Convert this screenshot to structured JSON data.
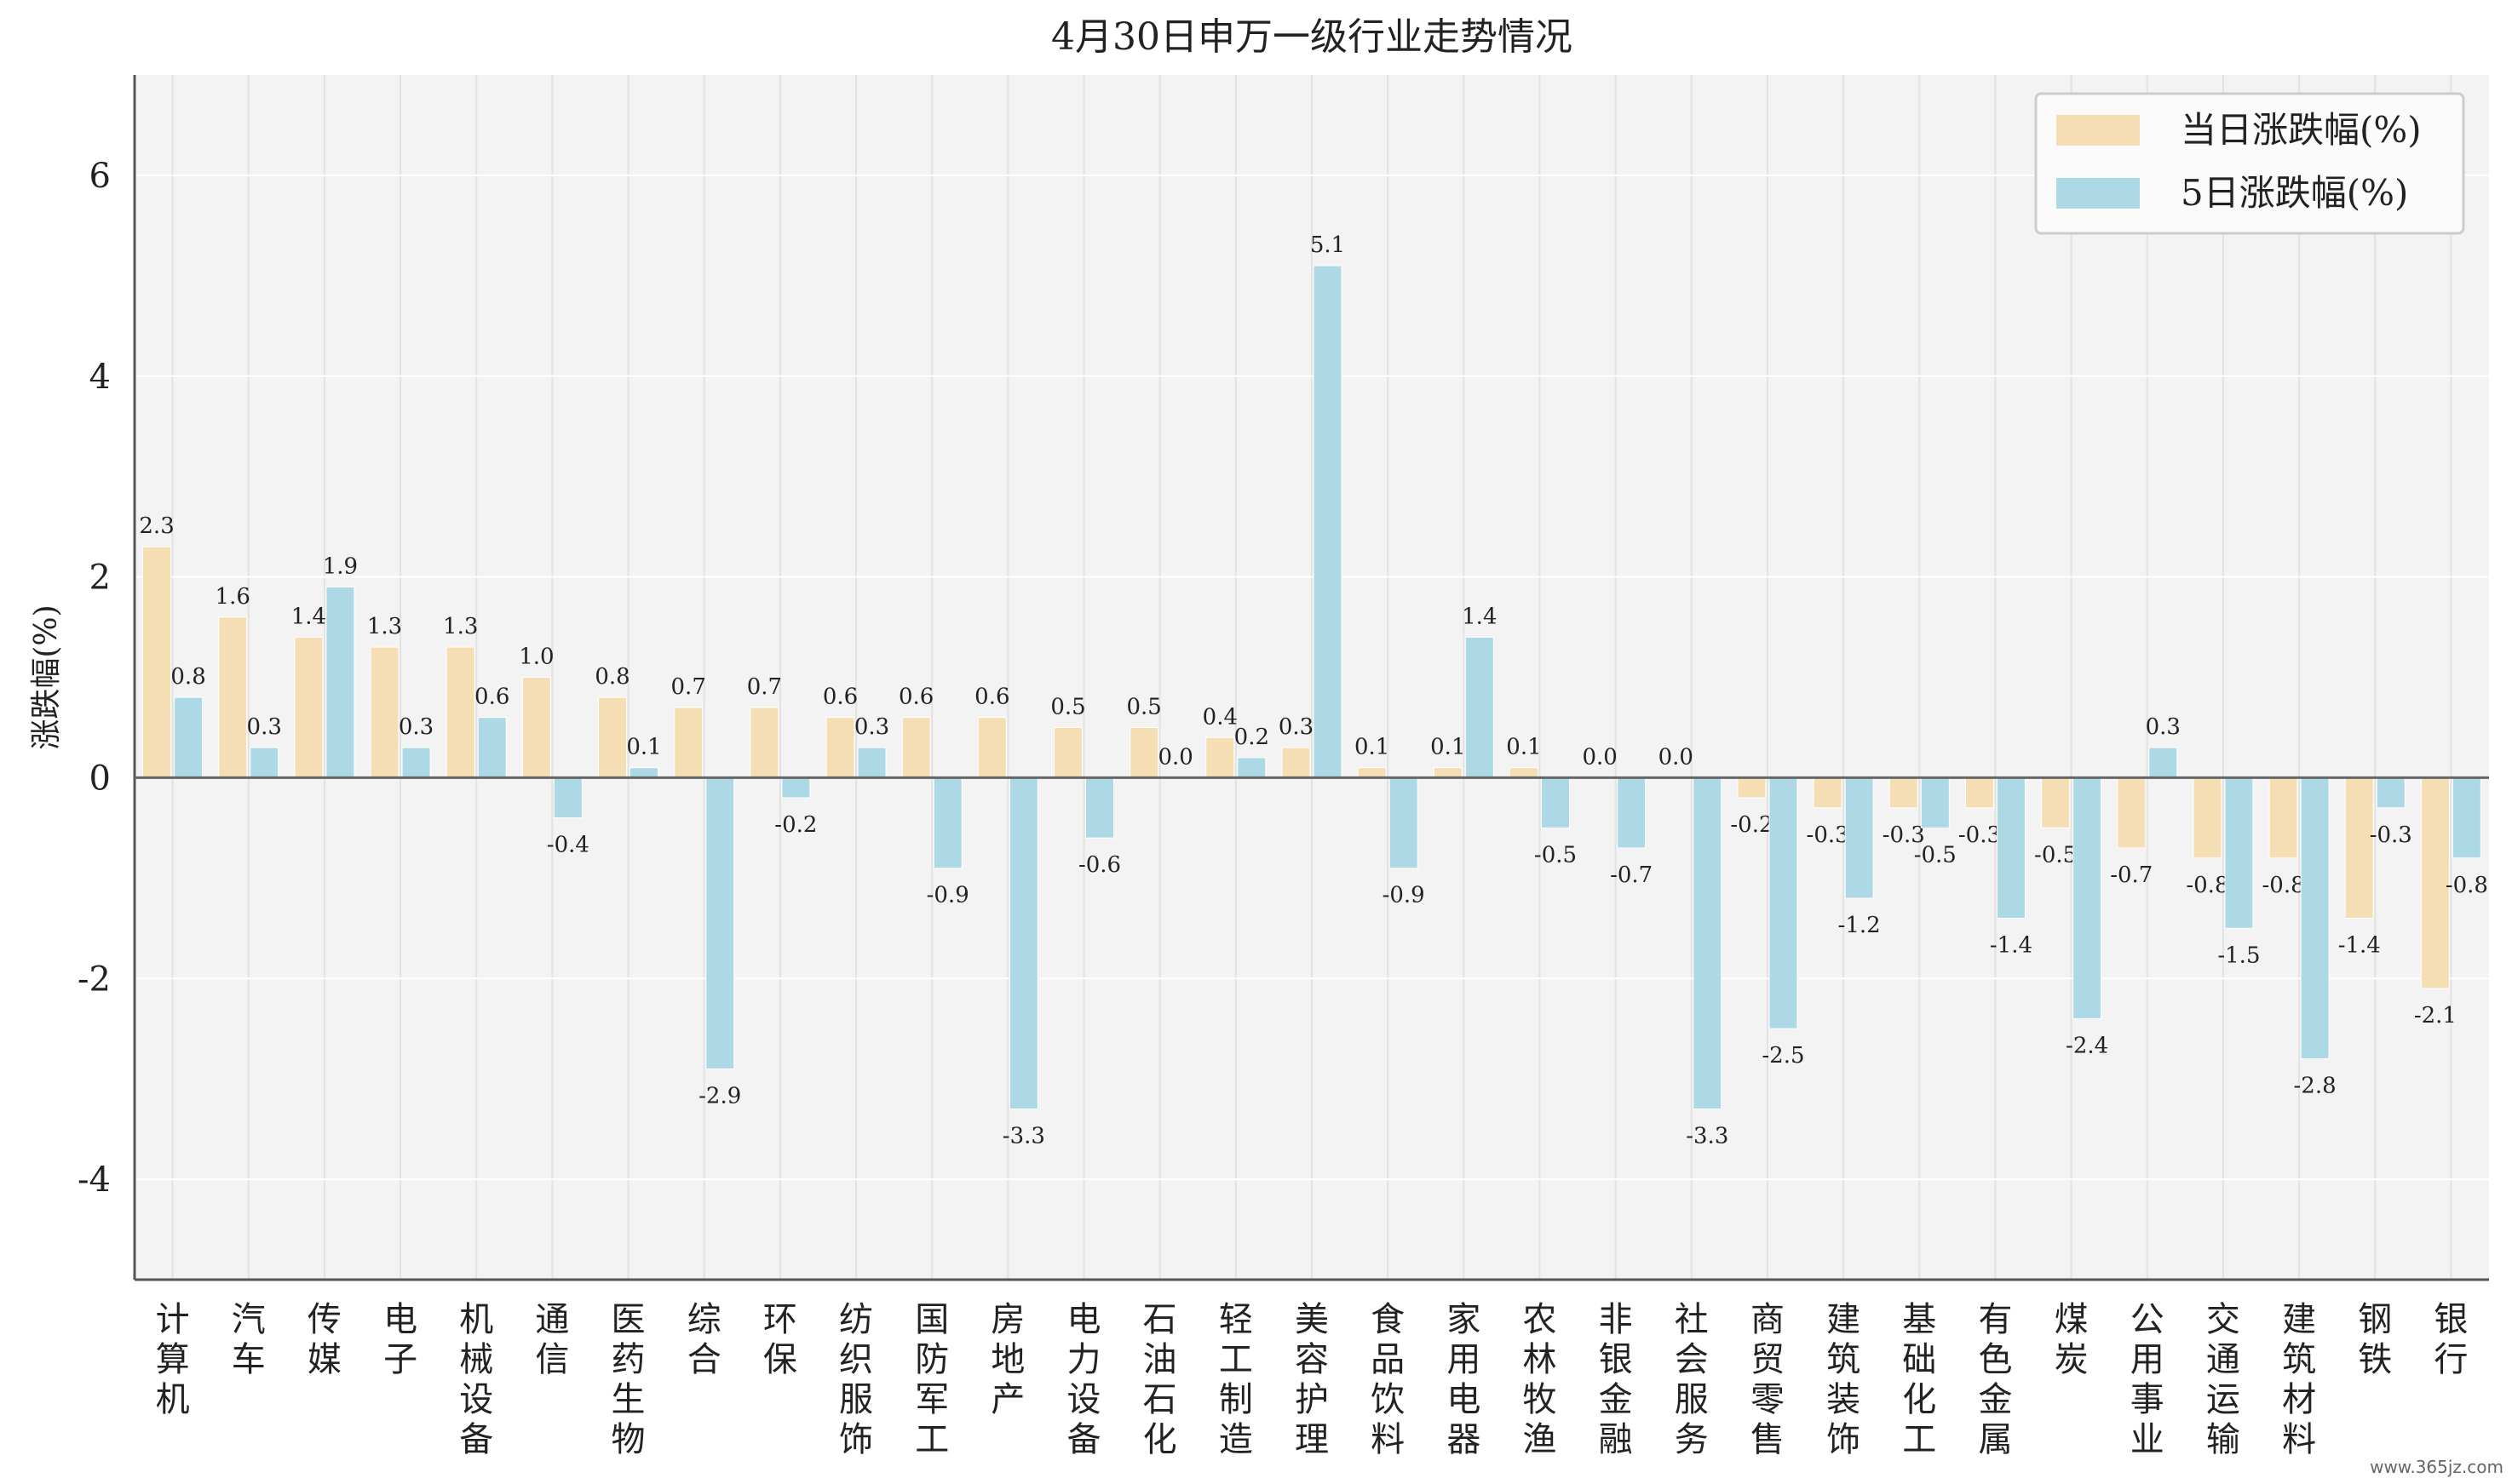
{
  "chart_data": {
    "type": "bar",
    "title": "4月30日申万一级行业走势情况",
    "xlabel": "",
    "ylabel": "涨跌幅(%)",
    "ylim": [
      -5,
      7
    ],
    "yticks": [
      -4,
      -2,
      0,
      2,
      4,
      6
    ],
    "grid": true,
    "legend_position": "top-right",
    "categories": [
      "计算机",
      "汽车",
      "传媒",
      "电子",
      "机械设备",
      "通信",
      "医药生物",
      "综合",
      "环保",
      "纺织服饰",
      "国防军工",
      "房地产",
      "电力设备",
      "石油石化",
      "轻工制造",
      "美容护理",
      "食品饮料",
      "家用电器",
      "农林牧渔",
      "非银金融",
      "社会服务",
      "商贸零售",
      "建筑装饰",
      "基础化工",
      "有色金属",
      "煤炭",
      "公用事业",
      "交通运输",
      "建筑材料",
      "钢铁",
      "银行"
    ],
    "series": [
      {
        "name": "当日涨跌幅(%)",
        "color": "#f5deb3",
        "values": [
          2.3,
          1.6,
          1.4,
          1.3,
          1.3,
          1.0,
          0.8,
          0.7,
          0.7,
          0.6,
          0.6,
          0.6,
          0.5,
          0.5,
          0.4,
          0.3,
          0.1,
          0.1,
          0.1,
          0.0,
          0.0,
          -0.2,
          -0.3,
          -0.3,
          -0.3,
          -0.5,
          -0.7,
          -0.8,
          -0.8,
          -1.4,
          -2.1
        ]
      },
      {
        "name": "5日涨跌幅(%)",
        "color": "#add8e6",
        "values": [
          0.8,
          0.3,
          1.9,
          0.3,
          0.6,
          -0.4,
          0.1,
          -2.9,
          -0.2,
          0.3,
          -0.9,
          -3.3,
          -0.6,
          0.0,
          0.2,
          5.1,
          -0.9,
          1.4,
          -0.5,
          -0.7,
          -3.3,
          -2.5,
          -1.2,
          -0.5,
          -1.4,
          -2.4,
          0.3,
          -1.5,
          -2.8,
          -0.3,
          -0.8
        ]
      }
    ]
  },
  "watermark": "www.365jz.com"
}
